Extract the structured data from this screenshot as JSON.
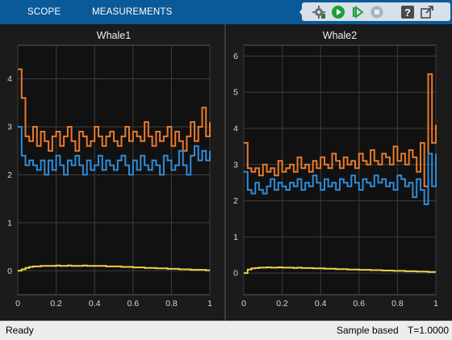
{
  "toolbar": {
    "tabs": [
      {
        "label": "SCOPE"
      },
      {
        "label": "MEASUREMENTS"
      }
    ],
    "buttons": [
      {
        "name": "collapse-icon"
      },
      {
        "name": "settings-icon"
      },
      {
        "name": "run-icon"
      },
      {
        "name": "step-forward-icon"
      },
      {
        "name": "stop-icon"
      },
      {
        "name": "help-icon"
      },
      {
        "name": "undock-icon"
      }
    ],
    "colors": {
      "bar": "#0a5a99",
      "strip": "#d8e0ea",
      "run": "#1e9e3a"
    }
  },
  "status_bar": {
    "left": "Ready",
    "mode": "Sample based",
    "time": "T=1.0000"
  },
  "chart_data": [
    {
      "type": "line",
      "title": "Whale1",
      "xlim": [
        0,
        1
      ],
      "ylim": [
        -0.5,
        4.7
      ],
      "xticks": [
        "0",
        "0.2",
        "0.4",
        "0.6",
        "0.8",
        "1"
      ],
      "yticks": [
        "0",
        "1",
        "2",
        "3",
        "4"
      ],
      "grid": true,
      "x": [
        0.0,
        0.02,
        0.04,
        0.06,
        0.08,
        0.1,
        0.12,
        0.14,
        0.16,
        0.18,
        0.2,
        0.22,
        0.24,
        0.26,
        0.28,
        0.3,
        0.32,
        0.34,
        0.36,
        0.38,
        0.4,
        0.42,
        0.44,
        0.46,
        0.48,
        0.5,
        0.52,
        0.54,
        0.56,
        0.58,
        0.6,
        0.62,
        0.64,
        0.66,
        0.68,
        0.7,
        0.72,
        0.74,
        0.76,
        0.78,
        0.8,
        0.82,
        0.84,
        0.86,
        0.88,
        0.9,
        0.92,
        0.94,
        0.96,
        0.98,
        1.0
      ],
      "series": [
        {
          "color": "#e87a2c",
          "values": [
            4.2,
            3.6,
            2.8,
            2.7,
            3.0,
            2.6,
            2.9,
            2.7,
            2.5,
            2.8,
            2.9,
            2.6,
            2.8,
            3.0,
            2.7,
            2.5,
            2.9,
            2.8,
            2.6,
            2.7,
            3.0,
            2.8,
            2.6,
            2.8,
            2.9,
            2.7,
            2.6,
            2.8,
            3.0,
            2.7,
            2.9,
            2.8,
            2.7,
            3.1,
            2.8,
            2.6,
            2.9,
            2.7,
            2.8,
            3.0,
            2.6,
            2.9,
            2.7,
            2.5,
            2.8,
            3.1,
            2.7,
            3.0,
            3.4,
            2.8,
            3.1
          ]
        },
        {
          "color": "#2f8cd8",
          "values": [
            3.0,
            2.4,
            2.2,
            2.3,
            2.2,
            2.1,
            2.3,
            2.0,
            2.3,
            2.1,
            2.4,
            2.2,
            2.0,
            2.3,
            2.2,
            2.4,
            2.2,
            2.0,
            2.3,
            2.1,
            2.2,
            2.4,
            2.1,
            2.3,
            2.2,
            2.1,
            2.3,
            2.4,
            2.2,
            2.0,
            2.3,
            2.1,
            2.4,
            2.2,
            2.1,
            2.3,
            2.2,
            2.0,
            2.4,
            2.3,
            2.1,
            2.2,
            2.5,
            2.2,
            2.0,
            2.4,
            2.6,
            2.3,
            2.5,
            2.3,
            2.5
          ]
        },
        {
          "color": "#f2d14a",
          "values": [
            0.0,
            0.03,
            0.06,
            0.08,
            0.09,
            0.09,
            0.1,
            0.1,
            0.1,
            0.1,
            0.11,
            0.1,
            0.1,
            0.11,
            0.1,
            0.1,
            0.1,
            0.11,
            0.1,
            0.1,
            0.1,
            0.1,
            0.1,
            0.09,
            0.09,
            0.09,
            0.09,
            0.08,
            0.08,
            0.08,
            0.07,
            0.07,
            0.07,
            0.06,
            0.06,
            0.06,
            0.05,
            0.05,
            0.05,
            0.04,
            0.04,
            0.04,
            0.03,
            0.03,
            0.03,
            0.02,
            0.02,
            0.02,
            0.02,
            0.01,
            0.01
          ]
        }
      ]
    },
    {
      "type": "line",
      "title": "Whale2",
      "xlim": [
        0,
        1
      ],
      "ylim": [
        -0.6,
        6.3
      ],
      "xticks": [
        "0",
        "0.2",
        "0.4",
        "0.6",
        "0.8",
        "1"
      ],
      "yticks": [
        "0",
        "1",
        "2",
        "3",
        "4",
        "5",
        "6"
      ],
      "grid": true,
      "x": [
        0.0,
        0.02,
        0.04,
        0.06,
        0.08,
        0.1,
        0.12,
        0.14,
        0.16,
        0.18,
        0.2,
        0.22,
        0.24,
        0.26,
        0.28,
        0.3,
        0.32,
        0.34,
        0.36,
        0.38,
        0.4,
        0.42,
        0.44,
        0.46,
        0.48,
        0.5,
        0.52,
        0.54,
        0.56,
        0.58,
        0.6,
        0.62,
        0.64,
        0.66,
        0.68,
        0.7,
        0.72,
        0.74,
        0.76,
        0.78,
        0.8,
        0.82,
        0.84,
        0.86,
        0.88,
        0.9,
        0.92,
        0.94,
        0.96,
        0.98,
        1.0
      ],
      "series": [
        {
          "color": "#e87a2c",
          "values": [
            3.6,
            2.9,
            2.8,
            2.9,
            2.7,
            3.0,
            2.8,
            2.9,
            2.7,
            3.1,
            2.8,
            2.9,
            3.0,
            2.8,
            3.2,
            2.9,
            3.0,
            2.8,
            3.1,
            2.9,
            3.2,
            3.0,
            2.9,
            3.3,
            3.1,
            2.9,
            3.2,
            3.0,
            3.1,
            2.9,
            3.3,
            3.1,
            3.0,
            3.4,
            3.1,
            3.0,
            3.3,
            3.2,
            3.0,
            3.5,
            3.1,
            3.3,
            3.0,
            3.4,
            3.2,
            2.8,
            3.6,
            2.4,
            5.5,
            3.6,
            4.1
          ]
        },
        {
          "color": "#2f8cd8",
          "values": [
            2.8,
            2.3,
            2.2,
            2.5,
            2.3,
            2.2,
            2.4,
            2.6,
            2.3,
            2.5,
            2.4,
            2.3,
            2.5,
            2.4,
            2.6,
            2.3,
            2.5,
            2.4,
            2.7,
            2.5,
            2.3,
            2.6,
            2.4,
            2.5,
            2.3,
            2.6,
            2.5,
            2.4,
            2.7,
            2.5,
            2.3,
            2.6,
            2.5,
            2.4,
            2.7,
            2.5,
            2.6,
            2.4,
            2.5,
            2.3,
            2.7,
            2.6,
            2.4,
            2.5,
            2.1,
            2.6,
            2.3,
            1.9,
            3.3,
            2.4,
            3.3
          ]
        },
        {
          "color": "#f2d14a",
          "values": [
            0.0,
            0.1,
            0.13,
            0.14,
            0.15,
            0.15,
            0.16,
            0.15,
            0.15,
            0.16,
            0.15,
            0.15,
            0.15,
            0.14,
            0.15,
            0.14,
            0.14,
            0.14,
            0.13,
            0.13,
            0.13,
            0.12,
            0.12,
            0.12,
            0.11,
            0.11,
            0.11,
            0.1,
            0.1,
            0.1,
            0.09,
            0.09,
            0.09,
            0.08,
            0.08,
            0.08,
            0.07,
            0.07,
            0.07,
            0.06,
            0.06,
            0.06,
            0.05,
            0.05,
            0.05,
            0.04,
            0.04,
            0.04,
            0.03,
            0.03,
            0.03
          ]
        }
      ]
    }
  ]
}
